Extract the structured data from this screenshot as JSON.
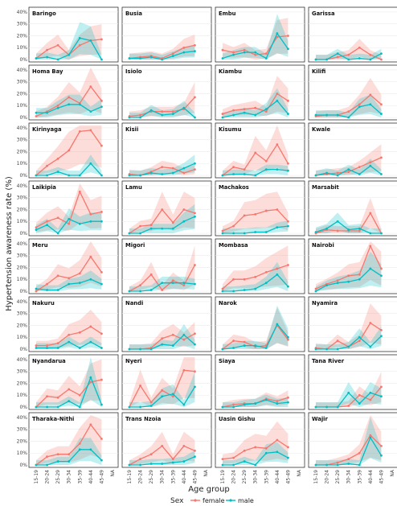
{
  "chart_data": {
    "type": "line",
    "ylabel": "Hypertension awareness rate (%)",
    "xlabel": "Age group",
    "x_categories": [
      "15-19",
      "20-24",
      "25-29",
      "30-34",
      "35-39",
      "40-44",
      "45-49",
      "NA"
    ],
    "y_ticks": [
      "0%",
      "10%",
      "20%",
      "30%",
      "40%"
    ],
    "ylim": [
      0,
      42
    ],
    "legend": {
      "title": "Sex",
      "position": "bottom",
      "entries": [
        {
          "name": "female",
          "color": "#F8766D"
        },
        {
          "name": "male",
          "color": "#00BFC4"
        }
      ]
    },
    "panels": [
      {
        "county": "Baringo",
        "female": [
          1,
          8,
          12,
          4,
          12,
          16,
          17,
          null
        ],
        "male": [
          1,
          2,
          0,
          4,
          18,
          16,
          0,
          null
        ]
      },
      {
        "county": "Busia",
        "female": [
          1,
          2,
          3,
          1,
          5,
          10,
          12,
          null
        ],
        "male": [
          1,
          1,
          2,
          0,
          3,
          6,
          7,
          null
        ]
      },
      {
        "county": "Embu",
        "female": [
          8,
          6,
          8,
          4,
          5,
          19,
          20,
          null
        ],
        "male": [
          1,
          4,
          6,
          6,
          1,
          22,
          9,
          null
        ]
      },
      {
        "county": "Garissa",
        "female": [
          0,
          0,
          2,
          4,
          10,
          4,
          0,
          null
        ],
        "male": [
          0,
          0,
          5,
          0,
          1,
          0,
          5,
          null
        ]
      },
      {
        "county": "Homa Bay",
        "female": [
          1,
          5,
          10,
          17,
          12,
          26,
          14,
          null
        ],
        "male": [
          4,
          4,
          8,
          11,
          11,
          5,
          9,
          null
        ]
      },
      {
        "county": "Isiolo",
        "female": [
          1,
          2,
          5,
          5,
          5,
          7,
          17,
          null
        ],
        "male": [
          0,
          0,
          6,
          2,
          3,
          8,
          0,
          null
        ]
      },
      {
        "county": "Kiambu",
        "female": [
          3,
          6,
          7,
          8,
          5,
          20,
          14,
          null
        ],
        "male": [
          0,
          2,
          4,
          2,
          7,
          14,
          3,
          null
        ]
      },
      {
        "county": "Kilifi",
        "female": [
          1,
          2,
          2,
          5,
          11,
          19,
          11,
          null
        ],
        "male": [
          2,
          2,
          2,
          0,
          9,
          11,
          3,
          null
        ]
      },
      {
        "county": "Kirinyaga",
        "female": [
          0,
          8,
          14,
          21,
          37,
          38,
          25,
          null
        ],
        "male": [
          0,
          0,
          3,
          0,
          0,
          10,
          0,
          null
        ]
      },
      {
        "county": "Kisii",
        "female": [
          1,
          0,
          3,
          7,
          6,
          2,
          5,
          null
        ],
        "male": [
          0,
          0,
          2,
          1,
          2,
          6,
          10,
          null
        ]
      },
      {
        "county": "Kisumu",
        "female": [
          0,
          7,
          5,
          19,
          12,
          26,
          10,
          null
        ],
        "male": [
          0,
          1,
          1,
          0,
          5,
          5,
          4,
          null
        ]
      },
      {
        "county": "Kwale",
        "female": [
          0,
          1,
          2,
          3,
          7,
          11,
          15,
          null
        ],
        "male": [
          0,
          2,
          0,
          5,
          1,
          8,
          1,
          null
        ]
      },
      {
        "county": "Laikipia",
        "female": [
          5,
          10,
          13,
          8,
          35,
          16,
          18,
          null
        ],
        "male": [
          3,
          7,
          0,
          12,
          8,
          10,
          10,
          null
        ]
      },
      {
        "county": "Lamu",
        "female": [
          0,
          6,
          7,
          20,
          9,
          20,
          17,
          null
        ],
        "male": [
          0,
          0,
          4,
          4,
          4,
          10,
          14,
          null
        ]
      },
      {
        "county": "Machakos",
        "female": [
          2,
          6,
          15,
          16,
          19,
          20,
          10,
          null
        ],
        "male": [
          0,
          0,
          0,
          1,
          1,
          5,
          6,
          null
        ]
      },
      {
        "county": "Marsabit",
        "female": [
          0,
          3,
          2,
          2,
          2,
          17,
          0,
          null
        ],
        "male": [
          1,
          4,
          10,
          3,
          4,
          0,
          0,
          null
        ]
      },
      {
        "county": "Meru",
        "female": [
          0,
          6,
          13,
          11,
          15,
          29,
          16,
          null
        ],
        "male": [
          2,
          1,
          1,
          6,
          7,
          10,
          6,
          null
        ]
      },
      {
        "county": "Migori",
        "female": [
          0,
          5,
          14,
          1,
          9,
          5,
          22,
          null
        ],
        "male": [
          0,
          0,
          1,
          7,
          7,
          7,
          6,
          null
        ]
      },
      {
        "county": "Mombasa",
        "female": [
          2,
          10,
          10,
          12,
          16,
          19,
          22,
          null
        ],
        "male": [
          0,
          0,
          1,
          2,
          7,
          14,
          4,
          null
        ]
      },
      {
        "county": "Nairobi",
        "female": [
          2,
          6,
          9,
          13,
          14,
          38,
          19,
          null
        ],
        "male": [
          0,
          5,
          7,
          8,
          10,
          19,
          13,
          null
        ]
      },
      {
        "county": "Nakuru",
        "female": [
          3,
          3,
          5,
          12,
          14,
          19,
          13,
          null
        ],
        "male": [
          1,
          1,
          1,
          6,
          1,
          6,
          1,
          null
        ]
      },
      {
        "county": "Nandi",
        "female": [
          0,
          0,
          1,
          9,
          12,
          8,
          13,
          null
        ],
        "male": [
          0,
          0,
          0,
          4,
          3,
          12,
          4,
          null
        ]
      },
      {
        "county": "Narok",
        "female": [
          0,
          7,
          6,
          2,
          3,
          20,
          8,
          null
        ],
        "male": [
          0,
          1,
          3,
          3,
          1,
          21,
          10,
          null
        ]
      },
      {
        "county": "Nyamira",
        "female": [
          1,
          0,
          7,
          2,
          7,
          22,
          16,
          null
        ],
        "male": [
          0,
          0,
          0,
          2,
          10,
          2,
          11,
          null
        ]
      },
      {
        "county": "Nyandarua",
        "female": [
          0,
          9,
          8,
          15,
          10,
          21,
          23,
          null
        ],
        "male": [
          0,
          0,
          0,
          5,
          0,
          25,
          2,
          null
        ]
      },
      {
        "county": "Nyeri",
        "female": [
          0,
          18,
          4,
          14,
          9,
          31,
          30,
          null
        ],
        "male": [
          0,
          0,
          1,
          9,
          11,
          2,
          17,
          null
        ]
      },
      {
        "county": "Siaya",
        "female": [
          0,
          2,
          3,
          3,
          7,
          5,
          8,
          null
        ],
        "male": [
          0,
          0,
          2,
          3,
          6,
          3,
          4,
          null
        ]
      },
      {
        "county": "Tana River",
        "female": [
          0,
          0,
          0,
          1,
          10,
          6,
          17,
          null
        ],
        "male": [
          0,
          0,
          0,
          12,
          3,
          12,
          9,
          null
        ]
      },
      {
        "county": "Tharaka-Nithi",
        "female": [
          0,
          7,
          9,
          9,
          18,
          34,
          22,
          null
        ],
        "male": [
          0,
          0,
          3,
          3,
          13,
          13,
          4,
          null
        ]
      },
      {
        "county": "Trans Nzoia",
        "female": [
          0,
          5,
          9,
          16,
          5,
          16,
          12,
          null
        ],
        "male": [
          0,
          0,
          1,
          1,
          2,
          3,
          7,
          null
        ]
      },
      {
        "county": "Uasin Gishu",
        "female": [
          5,
          6,
          12,
          15,
          14,
          21,
          15,
          null
        ],
        "male": [
          0,
          0,
          3,
          0,
          10,
          11,
          6,
          null
        ]
      },
      {
        "county": "Wajir",
        "female": [
          0,
          0,
          2,
          5,
          10,
          25,
          16,
          null
        ],
        "male": [
          0,
          0,
          0,
          1,
          0,
          23,
          8,
          null
        ]
      }
    ]
  }
}
